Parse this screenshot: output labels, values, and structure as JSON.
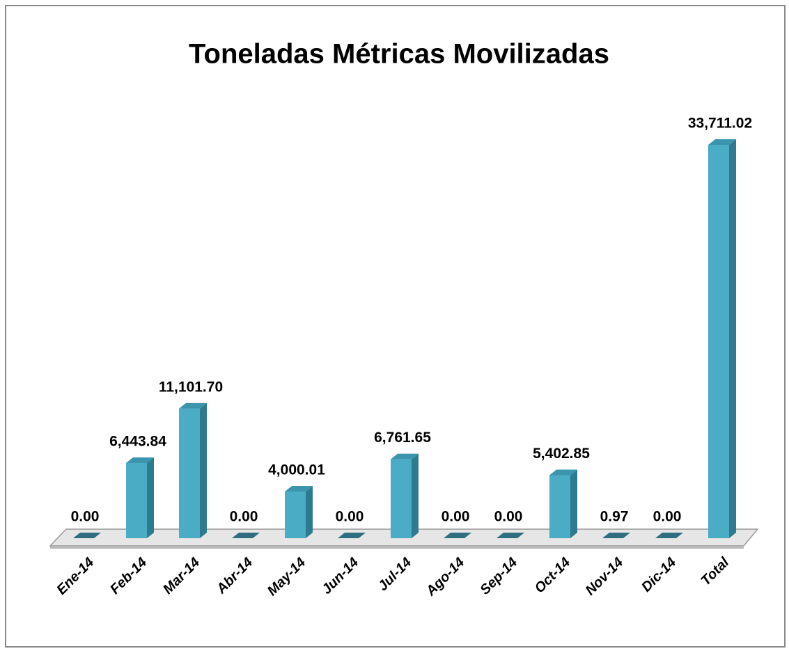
{
  "chart_data": {
    "type": "bar3d",
    "title": "Toneladas Métricas Movilizadas",
    "categories": [
      "Ene-14",
      "Feb-14",
      "Mar-14",
      "Abr-14",
      "May-14",
      "Jun-14",
      "Jul-14",
      "Ago-14",
      "Sep-14",
      "Oct-14",
      "Nov-14",
      "Dic-14",
      "Total"
    ],
    "values": [
      0,
      6443.84,
      11101.7,
      0,
      4000.01,
      0,
      6761.65,
      0,
      0,
      5402.85,
      0.97,
      0,
      33711.02
    ],
    "value_labels": [
      "0.00",
      "6,443.84",
      "11,101.70",
      "0.00",
      "4,000.01",
      "0.00",
      "6,761.65",
      "0.00",
      "0.00",
      "5,402.85",
      "0.97",
      "0.00",
      "33,711.02"
    ],
    "color": "#4bacc6"
  }
}
